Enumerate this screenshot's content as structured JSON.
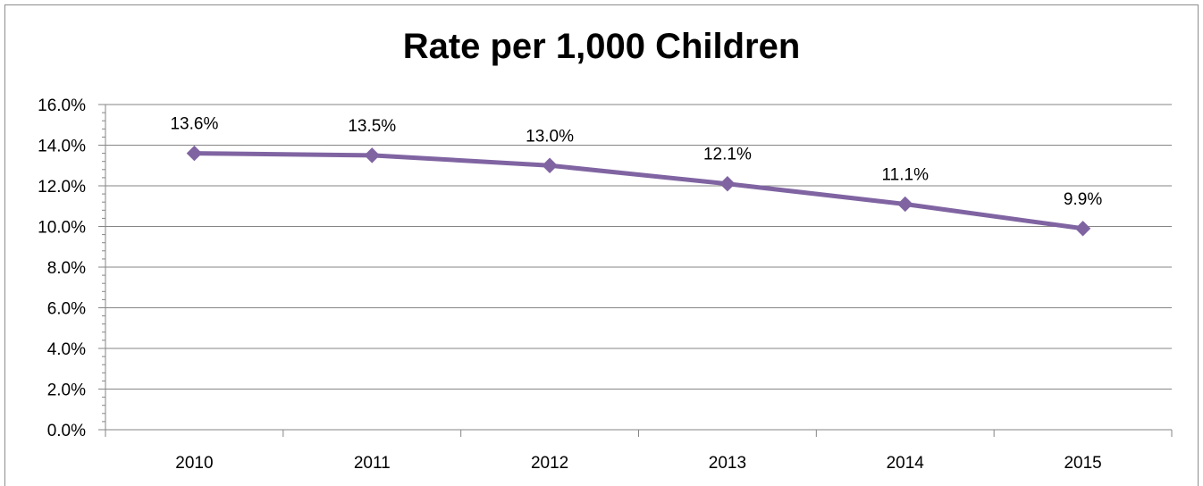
{
  "chart_data": {
    "type": "line",
    "title": "Rate per 1,000 Children",
    "categories": [
      "2010",
      "2011",
      "2012",
      "2013",
      "2014",
      "2015"
    ],
    "series": [
      {
        "values": [
          13.6,
          13.5,
          13.0,
          12.1,
          11.1,
          9.9
        ],
        "data_labels": [
          "13.6%",
          "13.5%",
          "13.0%",
          "12.1%",
          "11.1%",
          "9.9%"
        ],
        "color": "#8064a2",
        "marker": "diamond"
      }
    ],
    "ylim": [
      0,
      16
    ],
    "yticks": [
      0,
      2,
      4,
      6,
      8,
      10,
      12,
      14,
      16
    ],
    "ytick_labels": [
      "0.0%",
      "2.0%",
      "4.0%",
      "6.0%",
      "8.0%",
      "10.0%",
      "12.0%",
      "14.0%",
      "16.0%"
    ],
    "xlabel": "",
    "ylabel": "",
    "grid": true,
    "legend": "none",
    "colors": {
      "series": "#8064a2",
      "grid": "#868686",
      "frame": "#8c8c8c"
    }
  }
}
